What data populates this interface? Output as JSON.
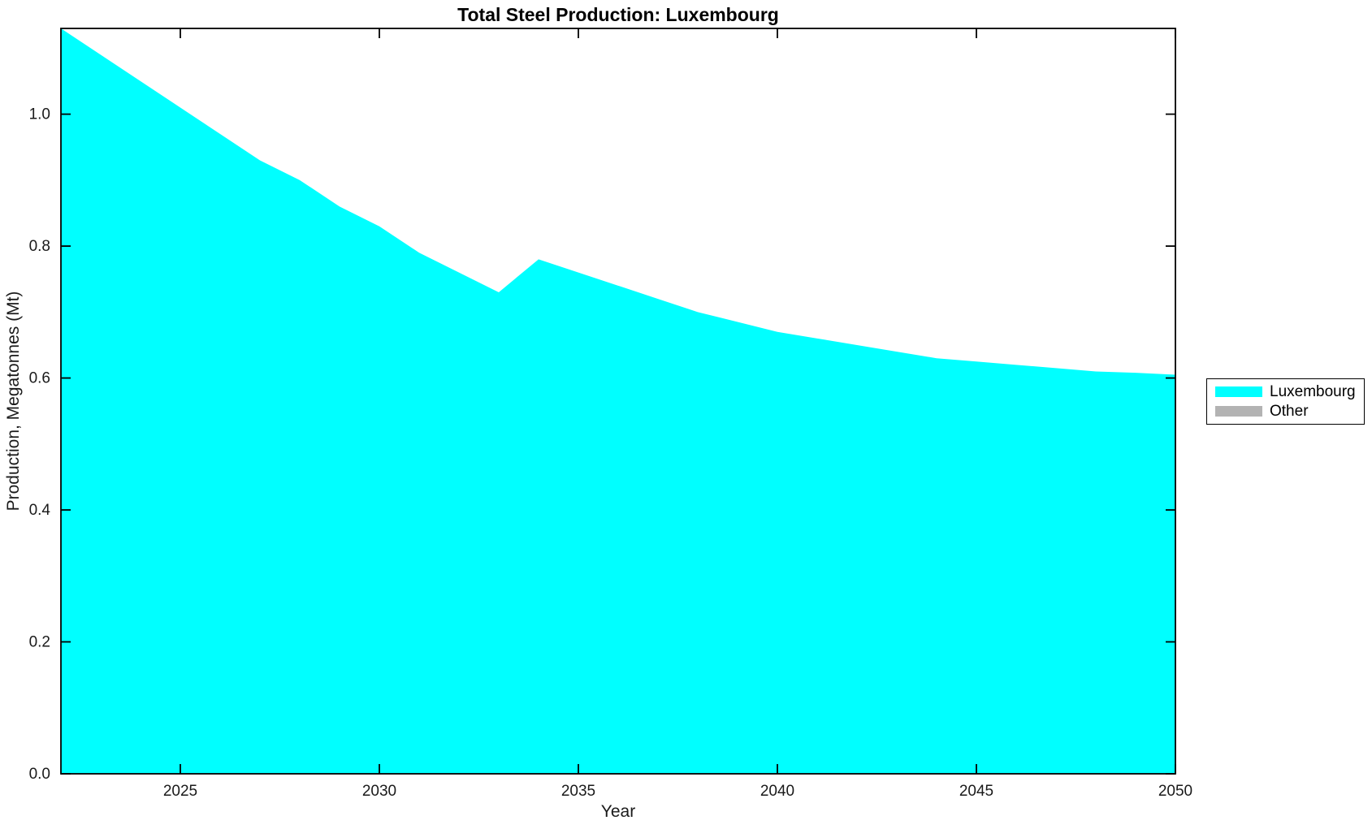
{
  "chart_data": {
    "type": "area",
    "stacked": true,
    "title": "Total Steel Production: Luxembourg",
    "xlabel": "Year",
    "ylabel": "Production, Megatonnes (Mt)",
    "xlim": [
      2022,
      2050
    ],
    "ylim": [
      0,
      1.13
    ],
    "x_ticks": [
      2025,
      2030,
      2035,
      2040,
      2045,
      2050
    ],
    "y_ticks": [
      0.0,
      0.2,
      0.4,
      0.6,
      0.8,
      1.0
    ],
    "y_tick_labels": [
      "0.0",
      "0.2",
      "0.4",
      "0.6",
      "0.8",
      "1.0"
    ],
    "grid": false,
    "legend_position": "right-outside",
    "axis_color": "#000000",
    "text_color": "#1a1a1a",
    "x": [
      2022,
      2023,
      2024,
      2025,
      2026,
      2027,
      2028,
      2029,
      2030,
      2031,
      2032,
      2033,
      2034,
      2035,
      2036,
      2037,
      2038,
      2039,
      2040,
      2041,
      2042,
      2043,
      2044,
      2045,
      2046,
      2047,
      2048,
      2049,
      2050
    ],
    "series": [
      {
        "name": "Luxembourg",
        "color": "#00ffff",
        "values": [
          1.13,
          1.09,
          1.05,
          1.01,
          0.97,
          0.93,
          0.9,
          0.86,
          0.83,
          0.79,
          0.76,
          0.73,
          0.78,
          0.76,
          0.74,
          0.72,
          0.7,
          0.685,
          0.67,
          0.66,
          0.65,
          0.64,
          0.63,
          0.625,
          0.62,
          0.615,
          0.61,
          0.608,
          0.605
        ]
      },
      {
        "name": "Other",
        "color": "#b3b3b3",
        "values": [
          0,
          0,
          0,
          0,
          0,
          0,
          0,
          0,
          0,
          0,
          0,
          0,
          0,
          0,
          0,
          0,
          0,
          0,
          0,
          0,
          0,
          0,
          0,
          0,
          0,
          0,
          0,
          0,
          0
        ]
      }
    ]
  }
}
